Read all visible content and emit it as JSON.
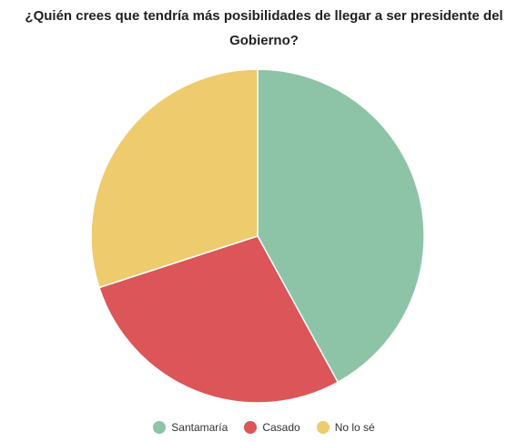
{
  "chart_data": {
    "type": "pie",
    "title": "¿Quién crees que tendría más posibilidades de llegar a ser presidente del Gobierno?",
    "categories": [
      "Santamaría",
      "Casado",
      "No lo sé"
    ],
    "values": [
      42,
      28,
      30
    ],
    "colors": [
      "#8dc4a7",
      "#dc5558",
      "#eecb6c"
    ],
    "legend_position": "bottom"
  }
}
